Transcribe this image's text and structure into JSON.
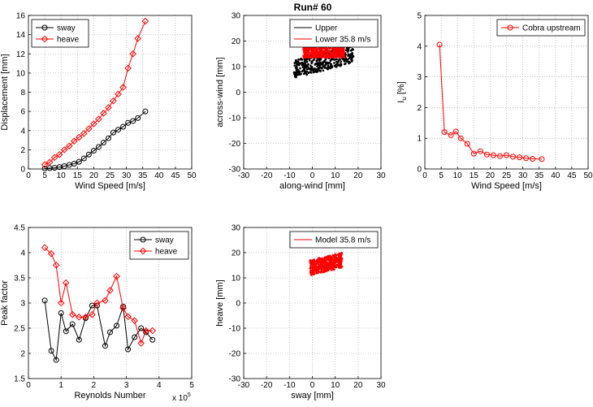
{
  "figure_title": "Run# 60",
  "chart_data": [
    {
      "id": "displacement",
      "type": "line",
      "xlabel": "Wind Speed [m/s]",
      "ylabel": "Displacement [mm]",
      "xlim": [
        0,
        50
      ],
      "ylim": [
        0,
        16
      ],
      "xticks": [
        0,
        5,
        10,
        15,
        20,
        25,
        30,
        35,
        40,
        45,
        50
      ],
      "yticks": [
        0,
        2,
        4,
        6,
        8,
        10,
        12,
        14,
        16
      ],
      "grid": true,
      "legend_position": "top-left",
      "series": [
        {
          "name": "sway",
          "color": "#000000",
          "marker": "circle",
          "x": [
            5,
            6.5,
            8,
            9.5,
            11,
            12.5,
            14,
            15.5,
            17,
            18.5,
            20,
            21.5,
            23,
            24.5,
            26,
            27.5,
            29,
            30.5,
            32,
            33.5,
            35.8
          ],
          "y": [
            0.05,
            0.08,
            0.12,
            0.2,
            0.3,
            0.42,
            0.55,
            0.75,
            1.1,
            1.5,
            1.9,
            2.3,
            2.75,
            3.2,
            3.8,
            4.1,
            4.4,
            4.8,
            5.0,
            5.3,
            6.0
          ]
        },
        {
          "name": "heave",
          "color": "#ff0000",
          "marker": "diamond",
          "x": [
            5,
            6.5,
            8,
            9.5,
            11,
            12.5,
            14,
            15.5,
            17,
            18.5,
            20,
            21.5,
            23,
            24.5,
            26,
            27.5,
            29,
            30.5,
            32,
            33.5,
            35.8
          ],
          "y": [
            0.45,
            0.7,
            1.2,
            1.5,
            2.0,
            2.4,
            2.9,
            3.3,
            3.7,
            4.2,
            4.7,
            5.2,
            5.8,
            6.4,
            7.1,
            7.8,
            8.5,
            10.5,
            12.0,
            13.6,
            15.4
          ]
        }
      ]
    },
    {
      "id": "xy-upper-lower",
      "type": "scatter",
      "title": "Run# 60",
      "xlabel": "along-wind [mm]",
      "ylabel": "across-wind [mm]",
      "xlim": [
        -30,
        30
      ],
      "ylim": [
        -30,
        30
      ],
      "xticks": [
        -30,
        -20,
        -10,
        0,
        10,
        20,
        30
      ],
      "yticks": [
        -30,
        -20,
        -10,
        0,
        10,
        20,
        30
      ],
      "grid": true,
      "legend_position": "top-right",
      "series": [
        {
          "name": "Upper",
          "color": "#000000",
          "cloud": {
            "x_range": [
              -8,
              18
            ],
            "y_at_xmin": 9,
            "y_at_xmax": 15,
            "thickness": 7
          }
        },
        {
          "name": "Lower 35.8 m/s",
          "color": "#ff0000",
          "cloud": {
            "x_range": [
              -4,
              14
            ],
            "y_at_xmin": 16,
            "y_at_xmax": 16,
            "thickness": 5
          }
        }
      ]
    },
    {
      "id": "turbulence",
      "type": "line",
      "xlabel": "Wind Speed [m/s]",
      "ylabel": "I_u [%]",
      "xlim": [
        0,
        50
      ],
      "ylim": [
        0,
        5
      ],
      "xticks": [
        0,
        5,
        10,
        15,
        20,
        25,
        30,
        35,
        40,
        45,
        50
      ],
      "yticks": [
        0,
        1,
        2,
        3,
        4,
        5
      ],
      "grid": true,
      "legend_position": "top-right",
      "series": [
        {
          "name": "Cobra upstream",
          "color": "#ff0000",
          "marker": "circle",
          "x": [
            4.5,
            6,
            8,
            9.5,
            11,
            13,
            15,
            17,
            19,
            21,
            23,
            25,
            27,
            29,
            31,
            33,
            35.8
          ],
          "y": [
            4.05,
            1.2,
            1.1,
            1.22,
            1.0,
            0.82,
            0.5,
            0.58,
            0.47,
            0.45,
            0.42,
            0.45,
            0.4,
            0.38,
            0.35,
            0.33,
            0.32
          ]
        }
      ]
    },
    {
      "id": "peak-factor",
      "type": "line",
      "xlabel": "Reynolds Number",
      "ylabel": "Peak factor",
      "xlim": [
        0,
        5
      ],
      "ylim": [
        1.5,
        4.5
      ],
      "xticks": [
        0,
        1,
        2,
        3,
        4,
        5
      ],
      "yticks": [
        1.5,
        2,
        2.5,
        3,
        3.5,
        4,
        4.5
      ],
      "x_multiplier": "x 10",
      "x_multiplier_exp": "5",
      "grid": true,
      "legend_position": "top-right",
      "series": [
        {
          "name": "sway",
          "color": "#000000",
          "marker": "circle",
          "x": [
            0.5,
            0.7,
            0.85,
            1.0,
            1.15,
            1.35,
            1.55,
            1.75,
            1.95,
            2.1,
            2.35,
            2.5,
            2.7,
            2.9,
            3.05,
            3.25,
            3.45,
            3.6,
            3.8
          ],
          "y": [
            3.05,
            2.05,
            1.87,
            2.8,
            2.44,
            2.58,
            2.27,
            2.7,
            2.95,
            2.95,
            2.15,
            2.42,
            2.55,
            2.93,
            2.08,
            2.32,
            2.5,
            2.42,
            2.27
          ]
        },
        {
          "name": "heave",
          "color": "#ff0000",
          "marker": "diamond",
          "x": [
            0.5,
            0.7,
            0.85,
            1.0,
            1.15,
            1.35,
            1.55,
            1.75,
            1.95,
            2.1,
            2.35,
            2.5,
            2.7,
            2.9,
            3.05,
            3.25,
            3.45,
            3.6,
            3.8
          ],
          "y": [
            4.1,
            3.98,
            3.75,
            3.0,
            3.4,
            2.77,
            2.72,
            2.72,
            2.77,
            3.0,
            3.05,
            3.25,
            3.53,
            2.9,
            2.73,
            2.65,
            2.2,
            2.45,
            2.45
          ]
        }
      ]
    },
    {
      "id": "xy-model",
      "type": "scatter",
      "xlabel": "sway [mm]",
      "ylabel": "heave [mm]",
      "xlim": [
        -30,
        30
      ],
      "ylim": [
        -30,
        30
      ],
      "xticks": [
        -30,
        -20,
        -10,
        0,
        10,
        20,
        30
      ],
      "yticks": [
        -30,
        -20,
        -10,
        0,
        10,
        20,
        30
      ],
      "grid": true,
      "legend_position": "top-right",
      "series": [
        {
          "name": "Model 35.8 m/s",
          "color": "#ff0000",
          "cloud": {
            "x_range": [
              -1,
              13
            ],
            "y_at_xmin": 14,
            "y_at_xmax": 17,
            "thickness": 6
          }
        }
      ]
    }
  ]
}
